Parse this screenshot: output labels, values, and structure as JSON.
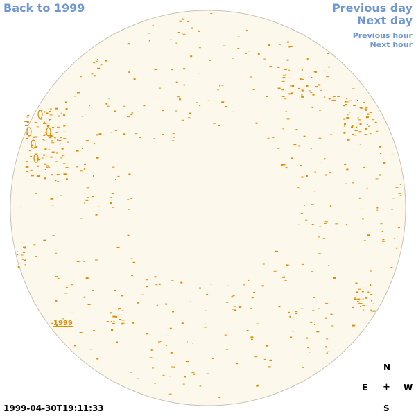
{
  "nav": {
    "back_label": "Back to 1999",
    "prev_day_label": "Previous day",
    "next_day_label": "Next day",
    "prev_hour_label": "Previous hour",
    "next_hour_label": "Next hour"
  },
  "map": {
    "timestamp": "1999-04-30T19:11:33",
    "year_label": "1999",
    "compass": {
      "north": "N",
      "east": "E",
      "center": "+",
      "west": "W",
      "south": "S"
    },
    "colors": {
      "disk_fill": "#fdf8ec",
      "disk_stroke": "#c8c2b5",
      "marks": "#e08a00",
      "link": "#6e96d6"
    }
  }
}
